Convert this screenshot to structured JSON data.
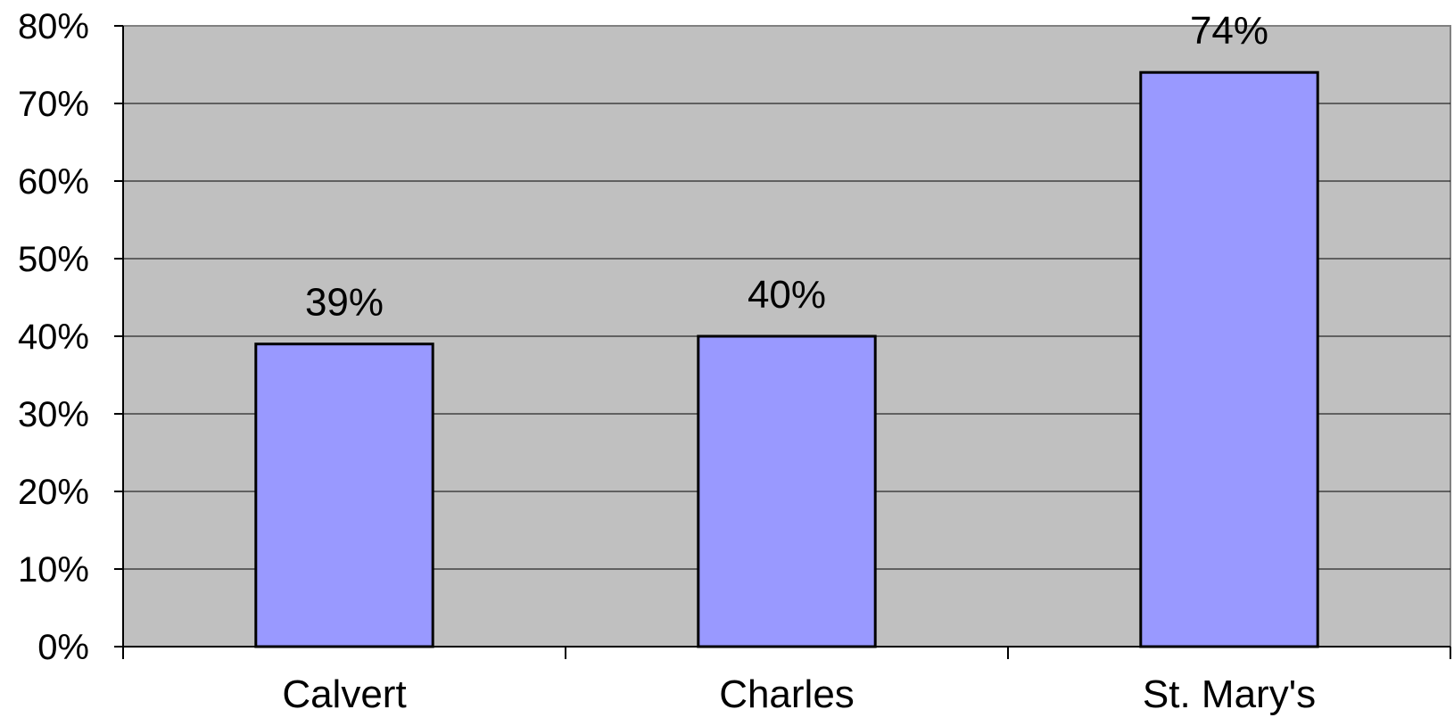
{
  "chart_data": {
    "type": "bar",
    "categories": [
      "Calvert",
      "Charles",
      "St. Mary's"
    ],
    "values": [
      39,
      40,
      74
    ],
    "data_labels": [
      "39%",
      "40%",
      "74%"
    ],
    "y_ticks": [
      "0%",
      "10%",
      "20%",
      "30%",
      "40%",
      "50%",
      "60%",
      "70%",
      "80%"
    ],
    "ylim": [
      0,
      80
    ],
    "y_step": 10,
    "grid": true,
    "legend": "none",
    "colors": {
      "bar_fill": "#9999ff",
      "bar_stroke": "#000000",
      "plot_bg": "#c0c0c0",
      "grid": "#000000"
    }
  }
}
